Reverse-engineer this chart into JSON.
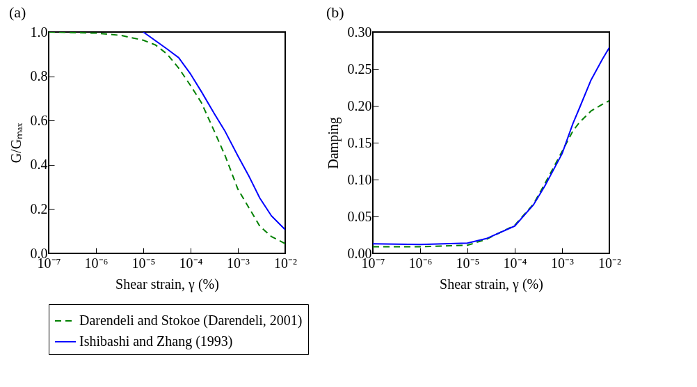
{
  "chart_data": [
    {
      "type": "line",
      "title": "(a)",
      "xlabel": "Shear strain, γ (%)",
      "ylabel": "G/Gₘₐₓ",
      "log": "x",
      "legend": "bottom",
      "grid": false,
      "xlim": [
        1e-07,
        0.01
      ],
      "xticks": [
        {
          "value": 1e-07,
          "label": "10⁻⁷"
        },
        {
          "value": 1e-06,
          "label": "10⁻⁶"
        },
        {
          "value": 1e-05,
          "label": "10⁻⁵"
        },
        {
          "value": 0.0001,
          "label": "10⁻⁴"
        },
        {
          "value": 0.001,
          "label": "10⁻³"
        },
        {
          "value": 0.01,
          "label": "10⁻²"
        }
      ],
      "ylim": [
        0,
        1
      ],
      "yticks": [
        {
          "value": 0,
          "label": "0.0"
        },
        {
          "value": 0.2,
          "label": "0.2"
        },
        {
          "value": 0.4,
          "label": "0.4"
        },
        {
          "value": 0.6,
          "label": "0.6"
        },
        {
          "value": 0.8,
          "label": "0.8"
        },
        {
          "value": 1,
          "label": "1.0"
        }
      ],
      "series": [
        {
          "name": "Darendeli and Stokoe (Darendeli, 2001)",
          "color": "#008000",
          "line_style": "dashed",
          "x": [
            1e-07,
            1e-06,
            3.3e-06,
            1e-05,
            1.8e-05,
            3.2e-05,
            5.6e-05,
            0.0001,
            0.00017,
            0.00032,
            0.00054,
            0.001,
            0.0017,
            0.0029,
            0.0051,
            0.01
          ],
          "values": [
            1.0,
            0.995,
            0.985,
            0.963,
            0.942,
            0.9,
            0.837,
            0.758,
            0.68,
            0.55,
            0.44,
            0.29,
            0.207,
            0.123,
            0.076,
            0.044
          ]
        },
        {
          "name": "Ishibashi and Zhang (1993)",
          "color": "#0000ff",
          "line_style": "solid",
          "x": [
            1e-05,
            3.2e-05,
            5.6e-05,
            0.0001,
            0.00017,
            0.00032,
            0.00054,
            0.001,
            0.0017,
            0.0029,
            0.0051,
            0.01
          ],
          "values": [
            1.0,
            0.923,
            0.884,
            0.81,
            0.73,
            0.63,
            0.55,
            0.44,
            0.35,
            0.25,
            0.17,
            0.107
          ]
        }
      ]
    },
    {
      "type": "line",
      "title": "(b)",
      "xlabel": "Shear strain, γ (%)",
      "ylabel": "Damping",
      "log": "x",
      "legend": "bottom",
      "grid": false,
      "xlim": [
        1e-07,
        0.01
      ],
      "xticks": [
        {
          "value": 1e-07,
          "label": "10⁻⁷"
        },
        {
          "value": 1e-06,
          "label": "10⁻⁶"
        },
        {
          "value": 1e-05,
          "label": "10⁻⁵"
        },
        {
          "value": 0.0001,
          "label": "10⁻⁴"
        },
        {
          "value": 0.001,
          "label": "10⁻³"
        },
        {
          "value": 0.01,
          "label": "10⁻²"
        }
      ],
      "ylim": [
        0,
        0.3
      ],
      "yticks": [
        {
          "value": 0,
          "label": "0.00"
        },
        {
          "value": 0.05,
          "label": "0.05"
        },
        {
          "value": 0.1,
          "label": "0.10"
        },
        {
          "value": 0.15,
          "label": "0.15"
        },
        {
          "value": 0.2,
          "label": "0.20"
        },
        {
          "value": 0.25,
          "label": "0.25"
        },
        {
          "value": 0.3,
          "label": "0.30"
        }
      ],
      "series": [
        {
          "name": "Darendeli and Stokoe (Darendeli, 2001)",
          "color": "#008000",
          "line_style": "dashed",
          "x": [
            1e-07,
            1e-06,
            1e-05,
            2.5e-05,
            0.0001,
            0.00025,
            0.00043,
            0.001,
            0.0017,
            0.0023,
            0.0041,
            0.0071,
            0.01
          ],
          "values": [
            0.009,
            0.009,
            0.011,
            0.019,
            0.038,
            0.067,
            0.094,
            0.138,
            0.166,
            0.177,
            0.193,
            0.202,
            0.207
          ]
        },
        {
          "name": "Ishibashi and Zhang (1993)",
          "color": "#0000ff",
          "line_style": "solid",
          "x": [
            1e-07,
            1e-06,
            1e-05,
            2.5e-05,
            0.0001,
            0.00025,
            0.00043,
            0.001,
            0.0017,
            0.0023,
            0.0041,
            0.0071,
            0.01
          ],
          "values": [
            0.013,
            0.012,
            0.014,
            0.02,
            0.037,
            0.066,
            0.091,
            0.135,
            0.176,
            0.196,
            0.235,
            0.263,
            0.279
          ]
        }
      ]
    }
  ]
}
